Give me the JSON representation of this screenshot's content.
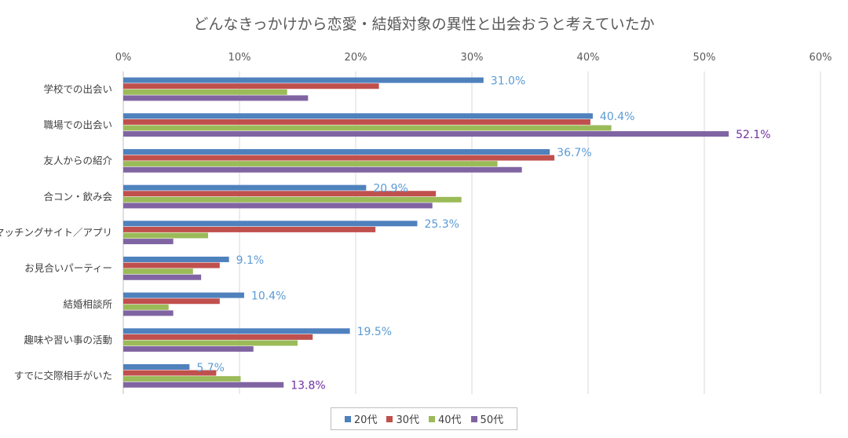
{
  "chart_data": {
    "type": "bar",
    "orientation": "horizontal",
    "title": "どんなきっかけから恋愛・結婚対象の異性と出会おうと考えていたか",
    "categories": [
      "学校での出会い",
      "職場での出会い",
      "友人からの紹介",
      "合コン・飲み会",
      "マッチングサイト／アプリ",
      "お見合いパーティー",
      "結婚相談所",
      "趣味や習い事の活動",
      "すでに交際相手がいた"
    ],
    "series": [
      {
        "name": "20代",
        "color": "#4f81bd",
        "values": [
          31.0,
          40.4,
          36.7,
          20.9,
          25.3,
          9.1,
          10.4,
          19.5,
          5.7
        ]
      },
      {
        "name": "30代",
        "color": "#c0504d",
        "values": [
          22.0,
          40.2,
          37.1,
          26.9,
          21.7,
          8.3,
          8.3,
          16.3,
          8.0
        ]
      },
      {
        "name": "40代",
        "color": "#9bbb59",
        "values": [
          14.1,
          42.0,
          32.2,
          29.1,
          7.3,
          6.0,
          3.9,
          15.0,
          10.1
        ]
      },
      {
        "name": "50代",
        "color": "#8064a2",
        "values": [
          15.9,
          52.1,
          34.3,
          26.6,
          4.3,
          6.7,
          4.3,
          11.2,
          13.8
        ]
      }
    ],
    "data_labels": [
      {
        "category": 0,
        "series": 0,
        "text": "31.0%",
        "color": "#5b9bd5"
      },
      {
        "category": 1,
        "series": 0,
        "text": "40.4%",
        "color": "#5b9bd5"
      },
      {
        "category": 1,
        "series": 3,
        "text": "52.1%",
        "color": "#7030a0"
      },
      {
        "category": 2,
        "series": 0,
        "text": "36.7%",
        "color": "#5b9bd5"
      },
      {
        "category": 3,
        "series": 0,
        "text": "20.9%",
        "color": "#5b9bd5"
      },
      {
        "category": 4,
        "series": 0,
        "text": "25.3%",
        "color": "#5b9bd5"
      },
      {
        "category": 5,
        "series": 0,
        "text": "9.1%",
        "color": "#5b9bd5"
      },
      {
        "category": 6,
        "series": 0,
        "text": "10.4%",
        "color": "#5b9bd5"
      },
      {
        "category": 7,
        "series": 0,
        "text": "19.5%",
        "color": "#5b9bd5"
      },
      {
        "category": 8,
        "series": 0,
        "text": "5.7%",
        "color": "#5b9bd5"
      },
      {
        "category": 8,
        "series": 3,
        "text": "13.8%",
        "color": "#7030a0"
      }
    ],
    "xlim": [
      0,
      60
    ],
    "xticks": [
      "0%",
      "10%",
      "20%",
      "30%",
      "40%",
      "50%",
      "60%"
    ],
    "grid": true,
    "legend": "bottom"
  }
}
